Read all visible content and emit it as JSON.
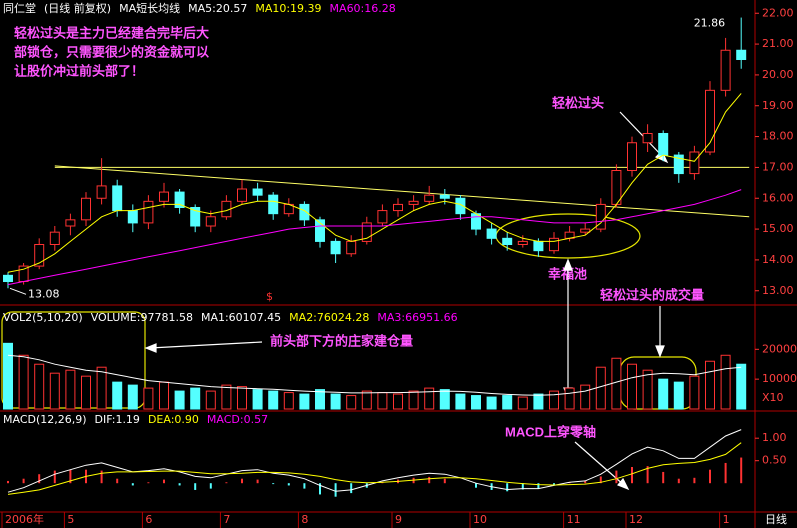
{
  "chart_data": [
    {
      "type": "candlestick",
      "title": "同仁堂",
      "subtitle": "(日线 前复权)",
      "indicator": "MA短长均线",
      "legend": [
        {
          "text": "MA5:20.57",
          "color": "#ffffff"
        },
        {
          "text": "MA10:19.39",
          "color": "#ffff00"
        },
        {
          "text": "MA60:16.28",
          "color": "#ff00ff"
        }
      ],
      "categories": [
        "2006年",
        null,
        null,
        null,
        "5",
        null,
        null,
        null,
        null,
        "6",
        null,
        null,
        null,
        null,
        "7",
        null,
        null,
        null,
        null,
        "8",
        null,
        null,
        null,
        null,
        null,
        "9",
        null,
        null,
        null,
        null,
        "10",
        null,
        null,
        null,
        null,
        null,
        "11",
        null,
        null,
        null,
        "12",
        null,
        null,
        null,
        null,
        null,
        "1",
        null
      ],
      "period": "日线",
      "up_color": "#ff3232",
      "down_color": "#54ffff",
      "ohlc": [
        [
          13.5,
          13.6,
          13.08,
          13.3
        ],
        [
          13.3,
          13.9,
          13.2,
          13.8
        ],
        [
          13.8,
          14.7,
          13.7,
          14.5
        ],
        [
          14.5,
          15.1,
          14.3,
          14.9
        ],
        [
          15.1,
          15.5,
          14.8,
          15.3
        ],
        [
          15.3,
          16.2,
          15.1,
          16.0
        ],
        [
          16.0,
          17.3,
          15.8,
          16.4
        ],
        [
          16.4,
          16.6,
          15.4,
          15.6
        ],
        [
          15.6,
          15.8,
          14.9,
          15.2
        ],
        [
          15.2,
          16.1,
          15.0,
          15.9
        ],
        [
          15.9,
          16.5,
          15.7,
          16.2
        ],
        [
          16.2,
          16.3,
          15.5,
          15.7
        ],
        [
          15.7,
          15.8,
          14.9,
          15.1
        ],
        [
          15.1,
          15.6,
          14.9,
          15.4
        ],
        [
          15.4,
          16.1,
          15.3,
          15.9
        ],
        [
          15.9,
          16.6,
          15.8,
          16.3
        ],
        [
          16.3,
          16.5,
          15.9,
          16.1
        ],
        [
          16.1,
          16.2,
          15.3,
          15.5
        ],
        [
          15.5,
          16.0,
          15.4,
          15.8
        ],
        [
          15.8,
          15.9,
          15.1,
          15.3
        ],
        [
          15.3,
          15.4,
          14.4,
          14.6
        ],
        [
          14.6,
          14.7,
          13.9,
          14.2
        ],
        [
          14.2,
          14.8,
          14.1,
          14.6
        ],
        [
          14.6,
          15.4,
          14.5,
          15.2
        ],
        [
          15.2,
          15.8,
          15.1,
          15.6
        ],
        [
          15.6,
          16.0,
          15.4,
          15.8
        ],
        [
          15.8,
          16.1,
          15.6,
          15.9
        ],
        [
          15.9,
          16.4,
          15.8,
          16.1
        ],
        [
          16.1,
          16.3,
          15.8,
          16.0
        ],
        [
          16.0,
          16.1,
          15.3,
          15.5
        ],
        [
          15.5,
          15.6,
          14.8,
          15.0
        ],
        [
          15.0,
          15.2,
          14.5,
          14.7
        ],
        [
          14.7,
          14.9,
          14.3,
          14.5
        ],
        [
          14.5,
          14.8,
          14.4,
          14.6
        ],
        [
          14.6,
          14.7,
          14.1,
          14.3
        ],
        [
          14.3,
          14.9,
          14.2,
          14.7
        ],
        [
          14.7,
          15.1,
          14.6,
          14.9
        ],
        [
          14.9,
          15.2,
          14.8,
          15.0
        ],
        [
          15.0,
          16.0,
          14.9,
          15.8
        ],
        [
          15.8,
          17.1,
          15.7,
          16.9
        ],
        [
          16.9,
          18.0,
          16.7,
          17.8
        ],
        [
          17.8,
          18.4,
          17.5,
          18.1
        ],
        [
          18.1,
          18.2,
          17.2,
          17.4
        ],
        [
          17.4,
          17.5,
          16.5,
          16.8
        ],
        [
          16.8,
          17.7,
          16.6,
          17.5
        ],
        [
          17.5,
          19.8,
          17.4,
          19.5
        ],
        [
          19.5,
          21.2,
          19.3,
          20.8
        ],
        [
          20.8,
          21.86,
          20.2,
          20.5
        ]
      ],
      "series": [
        {
          "color": "#ffff00",
          "values": [
            13.6,
            13.7,
            13.9,
            14.2,
            14.6,
            15.0,
            15.4,
            15.6,
            15.6,
            15.7,
            15.8,
            15.8,
            15.6,
            15.5,
            15.6,
            15.8,
            15.9,
            15.9,
            15.8,
            15.6,
            15.2,
            14.8,
            14.6,
            14.7,
            15.0,
            15.3,
            15.6,
            15.8,
            15.9,
            15.8,
            15.5,
            15.2,
            14.9,
            14.7,
            14.6,
            14.6,
            14.7,
            14.8,
            15.2,
            15.8,
            16.5,
            17.1,
            17.4,
            17.3,
            17.2,
            17.8,
            18.8,
            19.4
          ]
        },
        {
          "color": "#ff00ff",
          "values": [
            13.2,
            13.3,
            13.4,
            13.5,
            13.6,
            13.7,
            13.8,
            13.9,
            14.0,
            14.1,
            14.2,
            14.3,
            14.4,
            14.5,
            14.6,
            14.7,
            14.8,
            14.9,
            15.0,
            15.05,
            15.1,
            15.1,
            15.1,
            15.1,
            15.1,
            15.15,
            15.2,
            15.25,
            15.3,
            15.35,
            15.4,
            15.4,
            15.35,
            15.3,
            15.25,
            15.2,
            15.2,
            15.2,
            15.25,
            15.3,
            15.4,
            15.5,
            15.6,
            15.7,
            15.8,
            15.95,
            16.1,
            16.28
          ]
        }
      ],
      "trendlines": [
        {
          "color": "#ffff66",
          "values": [
            17.0,
            17.0
          ]
        },
        {
          "color": "#ffff66",
          "values": [
            17.05,
            15.4
          ]
        }
      ],
      "ylim": [
        12.7,
        22.3
      ],
      "yticks": [
        {
          "value": 13,
          "label": "13.00"
        },
        {
          "value": 14,
          "label": "14.00"
        },
        {
          "value": 15,
          "label": "15.00"
        },
        {
          "value": 16,
          "label": "16.00"
        },
        {
          "value": 17,
          "label": "17.00"
        },
        {
          "value": 18,
          "label": "18.00"
        },
        {
          "value": 19,
          "label": "19.00"
        },
        {
          "value": 20,
          "label": "20.00"
        },
        {
          "value": 21,
          "label": "21.00"
        },
        {
          "value": 22,
          "label": "22.00"
        }
      ],
      "annotations": {
        "note": [
          "轻松过头是主力已经建合完毕后大",
          "部锁仓，只需要很少的资金就可以",
          "让股价冲过前头部了！"
        ],
        "breakout": "轻松过头",
        "pool": "幸福池",
        "marker": "$"
      }
    },
    {
      "type": "bar",
      "title": "VOL2(5,10,20)",
      "legend": [
        {
          "text": "VOLUME:97781.58",
          "color": "#ffffff"
        },
        {
          "text": "MA1:60107.45",
          "color": "#ffffff"
        },
        {
          "text": "MA2:76024.28",
          "color": "#ffff00"
        },
        {
          "text": "MA3:66951.66",
          "color": "#ff00ff"
        }
      ],
      "values": [
        22000,
        18000,
        15000,
        12000,
        13000,
        11000,
        14000,
        9000,
        8000,
        7000,
        9000,
        6000,
        7000,
        6000,
        8000,
        7500,
        6500,
        6000,
        5500,
        5000,
        6500,
        5000,
        4500,
        6000,
        5500,
        5000,
        6000,
        7000,
        6500,
        5000,
        4500,
        4000,
        4500,
        4000,
        5000,
        6000,
        7000,
        8000,
        14000,
        17000,
        15000,
        13000,
        10000,
        9000,
        11000,
        16000,
        18000,
        15000
      ],
      "series": [
        {
          "color": "#ffffff",
          "values": [
            18000,
            17500,
            16500,
            15000,
            14000,
            13000,
            12500,
            11500,
            10500,
            9500,
            9000,
            8500,
            8000,
            7500,
            7200,
            7000,
            6800,
            6600,
            6300,
            6000,
            5800,
            5600,
            5400,
            5400,
            5500,
            5500,
            5600,
            5800,
            6000,
            5900,
            5600,
            5200,
            4900,
            4700,
            4600,
            4800,
            5300,
            6000,
            7500,
            9000,
            10500,
            11500,
            12000,
            11800,
            11500,
            12500,
            13500,
            14000
          ]
        }
      ],
      "ylim": [
        0,
        32500
      ],
      "yticks": [
        10000,
        20000
      ],
      "unit": "X10",
      "annotations": {
        "accumulation": "前头部下方的庄家建仓量",
        "breakout_volume": "轻松过头的成交量"
      }
    },
    {
      "type": "macd",
      "title": "MACD(12,26,9)",
      "legend": [
        {
          "text": "DIF:1.19",
          "color": "#ffffff"
        },
        {
          "text": "DEA:0.90",
          "color": "#ffff00"
        },
        {
          "text": "MACD:0.57",
          "color": "#ff00ff"
        }
      ],
      "values": [
        0.05,
        0.1,
        0.2,
        0.28,
        0.3,
        0.3,
        0.28,
        0.1,
        -0.05,
        0.02,
        0.08,
        -0.05,
        -0.15,
        -0.12,
        0.02,
        0.1,
        0.08,
        -0.02,
        -0.05,
        -0.12,
        -0.25,
        -0.3,
        -0.22,
        -0.1,
        0.02,
        0.08,
        0.12,
        0.14,
        0.1,
        0.0,
        -0.1,
        -0.15,
        -0.18,
        -0.14,
        -0.12,
        -0.05,
        0.02,
        0.05,
        0.15,
        0.28,
        0.36,
        0.38,
        0.25,
        0.1,
        0.12,
        0.3,
        0.45,
        0.57
      ],
      "series": [
        {
          "color": "#ffffff",
          "values": [
            -0.2,
            -0.1,
            0.05,
            0.2,
            0.3,
            0.4,
            0.45,
            0.35,
            0.25,
            0.28,
            0.32,
            0.25,
            0.15,
            0.12,
            0.2,
            0.28,
            0.3,
            0.22,
            0.18,
            0.1,
            -0.05,
            -0.18,
            -0.15,
            -0.05,
            0.05,
            0.12,
            0.18,
            0.22,
            0.2,
            0.12,
            0.0,
            -0.08,
            -0.14,
            -0.12,
            -0.12,
            -0.05,
            0.02,
            0.05,
            0.2,
            0.42,
            0.65,
            0.8,
            0.72,
            0.55,
            0.55,
            0.8,
            1.05,
            1.19
          ]
        },
        {
          "color": "#ffff00",
          "values": [
            -0.25,
            -0.2,
            -0.15,
            -0.05,
            0.05,
            0.15,
            0.22,
            0.25,
            0.25,
            0.26,
            0.27,
            0.27,
            0.24,
            0.21,
            0.21,
            0.22,
            0.24,
            0.24,
            0.23,
            0.2,
            0.15,
            0.08,
            0.03,
            0.01,
            0.02,
            0.04,
            0.07,
            0.1,
            0.12,
            0.12,
            0.1,
            0.06,
            0.02,
            -0.01,
            -0.03,
            -0.04,
            -0.03,
            -0.02,
            0.02,
            0.1,
            0.21,
            0.33,
            0.41,
            0.44,
            0.46,
            0.53,
            0.64,
            0.9
          ]
        }
      ],
      "ylim": [
        -0.64,
        1.56
      ],
      "yticks": [
        {
          "value": 1,
          "label": "1.00"
        },
        {
          "value": 0.5,
          "label": "0.50"
        }
      ],
      "annotations": {
        "zero_cross": "MACD上穿零轴"
      }
    }
  ]
}
